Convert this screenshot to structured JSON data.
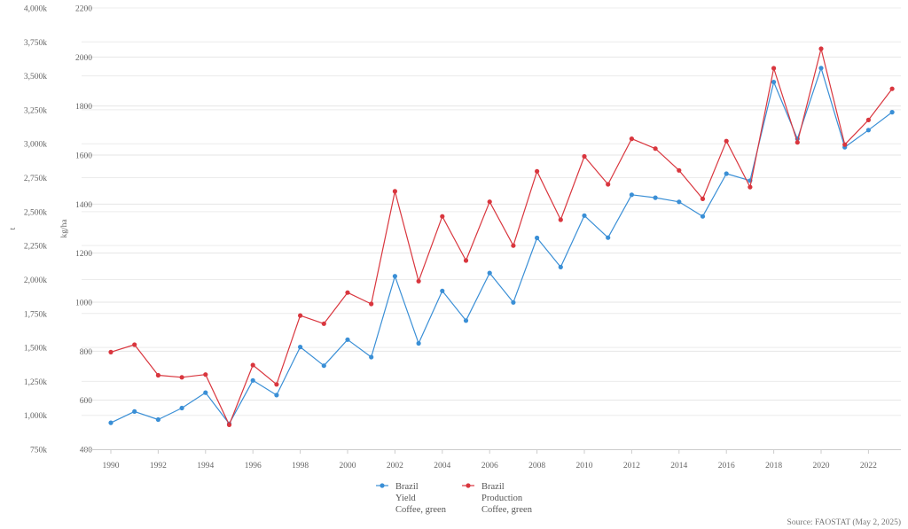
{
  "chart_data": {
    "type": "line",
    "x": [
      1990,
      1991,
      1992,
      1993,
      1994,
      1995,
      1996,
      1997,
      1998,
      1999,
      2000,
      2001,
      2002,
      2003,
      2004,
      2005,
      2006,
      2007,
      2008,
      2009,
      2010,
      2011,
      2012,
      2013,
      2014,
      2015,
      2016,
      2017,
      2018,
      2019,
      2020,
      2021,
      2022,
      2023
    ],
    "x_tick_labels": [
      "1990",
      "1992",
      "1994",
      "1996",
      "1998",
      "2000",
      "2002",
      "2004",
      "2006",
      "2008",
      "2010",
      "2012",
      "2014",
      "2016",
      "2018",
      "2020",
      "2022"
    ],
    "x_ticks": [
      1990,
      1992,
      1994,
      1996,
      1998,
      2000,
      2002,
      2004,
      2006,
      2008,
      2010,
      2012,
      2014,
      2016,
      2018,
      2020,
      2022
    ],
    "xlim": [
      1990,
      2023
    ],
    "left_axis": {
      "label": "t",
      "ylim": [
        750000,
        4000000
      ],
      "ticks": [
        750000,
        1000000,
        1250000,
        1500000,
        1750000,
        2000000,
        2250000,
        2500000,
        2750000,
        3000000,
        3250000,
        3500000,
        3750000,
        4000000
      ],
      "tick_labels": [
        "750k",
        "1,000k",
        "1,250k",
        "1,500k",
        "1,750k",
        "2,000k",
        "2,250k",
        "2,500k",
        "2,750k",
        "3,000k",
        "3,250k",
        "3,500k",
        "3,750k",
        "4,000k"
      ]
    },
    "right_axis": {
      "label": "kg/ha",
      "ylim": [
        400,
        2200
      ],
      "ticks": [
        400,
        600,
        800,
        1000,
        1200,
        1400,
        1600,
        1800,
        2000,
        2200
      ],
      "tick_labels": [
        "400",
        "600",
        "800",
        "1000",
        "1200",
        "1400",
        "1600",
        "1800",
        "2000",
        "2200"
      ]
    },
    "series": [
      {
        "name": "Brazil",
        "legend_lines": [
          "Brazil",
          "Yield",
          "Coffee, green"
        ],
        "axis": "right",
        "color": "#3a8fd6",
        "values": [
          508,
          554,
          521,
          568,
          631,
          504,
          681,
          621,
          817,
          741,
          847,
          776,
          1106,
          832,
          1046,
          925,
          1119,
          999,
          1262,
          1143,
          1353,
          1263,
          1438,
          1426,
          1409,
          1350,
          1524,
          1496,
          1898,
          1666,
          1955,
          1632,
          1702,
          1775
        ]
      },
      {
        "name": "Brazil",
        "legend_lines": [
          "Brazil",
          "Production",
          "Coffee, green"
        ],
        "axis": "left",
        "color": "#d9363e",
        "values": [
          1465000,
          1520000,
          1295000,
          1280000,
          1300000,
          930000,
          1370000,
          1228000,
          1735000,
          1675000,
          1904000,
          1820000,
          2650000,
          1988000,
          2465000,
          2140000,
          2573000,
          2250000,
          2797000,
          2440000,
          2907000,
          2701000,
          3037000,
          2964000,
          2804000,
          2594000,
          3020000,
          2681000,
          3556000,
          3010000,
          3700000,
          2994000,
          3175000,
          3405000
        ]
      }
    ],
    "grid": true,
    "legend_position": "bottom-center"
  },
  "source": "Source: FAOSTAT (May 2, 2025)"
}
